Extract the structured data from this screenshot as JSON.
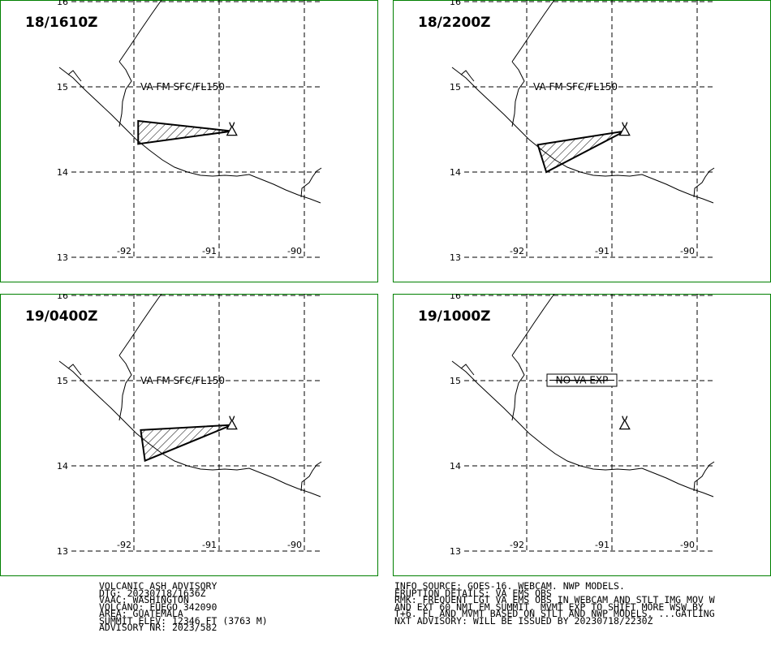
{
  "panels": [
    {
      "title": "18/1610Z",
      "layer_label": "VA FM SFC/FL150",
      "no_va_label": "",
      "ash_polygon": [
        [
          -91.95,
          14.6
        ],
        [
          -90.85,
          14.48
        ],
        [
          -91.95,
          14.33
        ]
      ]
    },
    {
      "title": "18/2200Z",
      "layer_label": "VA FM SFC/FL150",
      "no_va_label": "",
      "ash_polygon": [
        [
          -91.87,
          14.32
        ],
        [
          -90.85,
          14.48
        ],
        [
          -91.77,
          14.0
        ]
      ]
    },
    {
      "title": "19/0400Z",
      "layer_label": "VA FM SFC/FL150",
      "no_va_label": "",
      "ash_polygon": [
        [
          -91.92,
          14.42
        ],
        [
          -90.85,
          14.48
        ],
        [
          -91.87,
          14.06
        ]
      ]
    },
    {
      "title": "19/1000Z",
      "layer_label": "",
      "no_va_label": "NO VA EXP",
      "ash_polygon": []
    }
  ],
  "grid": {
    "lat_labels": [
      "16",
      "15",
      "14",
      "13"
    ],
    "lon_labels": [
      "-92",
      "-91",
      "-90"
    ]
  },
  "volcano_icon": "volcano-triangle-icon",
  "advisory_left": [
    "VOLCANIC ASH ADVISORY",
    "DTG: 20230718/1636Z",
    "VAAC: WASHINGTON",
    "VOLCANO: FUEGO 342090",
    "AREA: GUATEMALA",
    "SUMMIT ELEV: 12346 FT (3763 M)",
    "ADVISORY NR: 2023/582"
  ],
  "advisory_right": [
    "INFO SOURCE: GOES-16. WEBCAM. NWP MODELS.",
    "ERUPTION DETAILS: VA EMS OBS",
    "RMK: FREQUENT LGT VA EMS OBS IN WEBCAM AND STLT IMG MOV W",
    "AND EXT 60 NMI FM SUMMIT. MVMT EXP TO SHIFT MORE WSW BY",
    "T+6. FL AND MVMT BASED ON STLT AND NWP MODELS. ...GATLING",
    "NXT ADVISORY: WILL BE ISSUED BY 20230718/2230Z"
  ],
  "colors": {
    "frame": "#008000",
    "ink": "#000000",
    "background": "#ffffff"
  }
}
